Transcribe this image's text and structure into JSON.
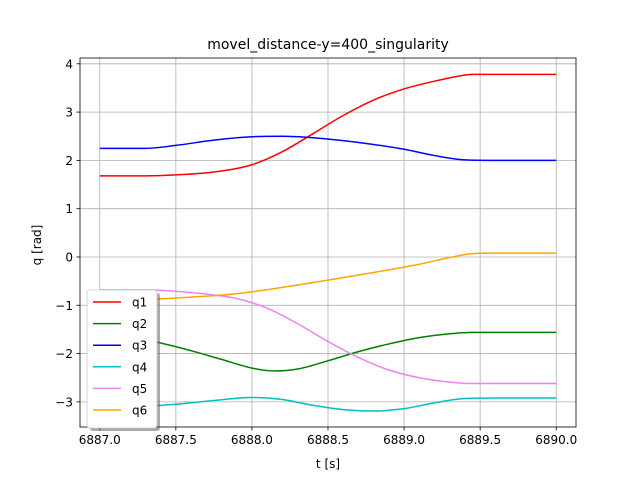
{
  "chart_data": {
    "type": "line",
    "title": "movel_distance-y=400_singularity",
    "xlabel": "t [s]",
    "ylabel": "q [rad]",
    "xlim": [
      6886.87,
      6890.13
    ],
    "ylim": [
      -3.52,
      4.12
    ],
    "xticks": [
      6887.0,
      6887.5,
      6888.0,
      6888.5,
      6889.0,
      6889.5,
      6890.0
    ],
    "xtick_labels": [
      "6887.0",
      "6887.5",
      "6888.0",
      "6888.5",
      "6889.0",
      "6889.5",
      "6890.0"
    ],
    "yticks": [
      -3,
      -2,
      -1,
      0,
      1,
      2,
      3,
      4
    ],
    "ytick_labels": [
      "−3",
      "−2",
      "−1",
      "0",
      "1",
      "2",
      "3",
      "4"
    ],
    "grid": true,
    "legend_position": "bottom-left",
    "series": [
      {
        "name": "q1",
        "color": "#ff0000",
        "x": [
          6887.0,
          6887.3,
          6887.5,
          6887.75,
          6888.0,
          6888.2,
          6888.4,
          6888.6,
          6888.8,
          6889.0,
          6889.2,
          6889.35,
          6889.45,
          6889.6,
          6890.0
        ],
        "y": [
          1.68,
          1.68,
          1.7,
          1.76,
          1.91,
          2.18,
          2.55,
          2.93,
          3.25,
          3.48,
          3.64,
          3.74,
          3.78,
          3.78,
          3.78
        ]
      },
      {
        "name": "q2",
        "color": "#008000",
        "x": [
          6887.0,
          6887.2,
          6887.4,
          6887.6,
          6887.8,
          6888.0,
          6888.15,
          6888.3,
          6888.5,
          6888.7,
          6888.9,
          6889.1,
          6889.3,
          6889.45,
          6889.6,
          6890.0
        ],
        "y": [
          -1.62,
          -1.66,
          -1.78,
          -1.94,
          -2.12,
          -2.3,
          -2.36,
          -2.32,
          -2.15,
          -1.96,
          -1.8,
          -1.67,
          -1.59,
          -1.56,
          -1.56,
          -1.56
        ]
      },
      {
        "name": "q3",
        "color": "#0000ff",
        "x": [
          6887.0,
          6887.3,
          6887.5,
          6887.75,
          6888.0,
          6888.2,
          6888.4,
          6888.6,
          6888.8,
          6889.0,
          6889.2,
          6889.4,
          6889.6,
          6890.0
        ],
        "y": [
          2.25,
          2.25,
          2.31,
          2.42,
          2.49,
          2.5,
          2.47,
          2.41,
          2.33,
          2.23,
          2.1,
          2.01,
          2.0,
          2.0
        ]
      },
      {
        "name": "q4",
        "color": "#00bfbf",
        "x": [
          6887.0,
          6887.25,
          6887.5,
          6887.75,
          6888.0,
          6888.2,
          6888.4,
          6888.6,
          6888.8,
          6889.0,
          6889.2,
          6889.4,
          6889.6,
          6890.0
        ],
        "y": [
          -3.12,
          -3.1,
          -3.05,
          -2.97,
          -2.91,
          -2.95,
          -3.07,
          -3.16,
          -3.19,
          -3.14,
          -3.02,
          -2.93,
          -2.92,
          -2.92
        ]
      },
      {
        "name": "q5",
        "color": "#ee82ee",
        "x": [
          6887.0,
          6887.3,
          6887.5,
          6887.7,
          6887.9,
          6888.1,
          6888.3,
          6888.5,
          6888.7,
          6888.9,
          6889.1,
          6889.3,
          6889.45,
          6889.6,
          6890.0
        ],
        "y": [
          -0.68,
          -0.68,
          -0.71,
          -0.77,
          -0.86,
          -1.06,
          -1.38,
          -1.75,
          -2.08,
          -2.34,
          -2.5,
          -2.59,
          -2.62,
          -2.62,
          -2.62
        ]
      },
      {
        "name": "q6",
        "color": "#ffa500",
        "x": [
          6887.0,
          6887.3,
          6887.6,
          6887.9,
          6888.2,
          6888.5,
          6888.8,
          6889.1,
          6889.3,
          6889.45,
          6889.6,
          6890.0
        ],
        "y": [
          -0.9,
          -0.88,
          -0.83,
          -0.76,
          -0.63,
          -0.48,
          -0.32,
          -0.15,
          -0.01,
          0.07,
          0.08,
          0.08
        ]
      }
    ]
  }
}
